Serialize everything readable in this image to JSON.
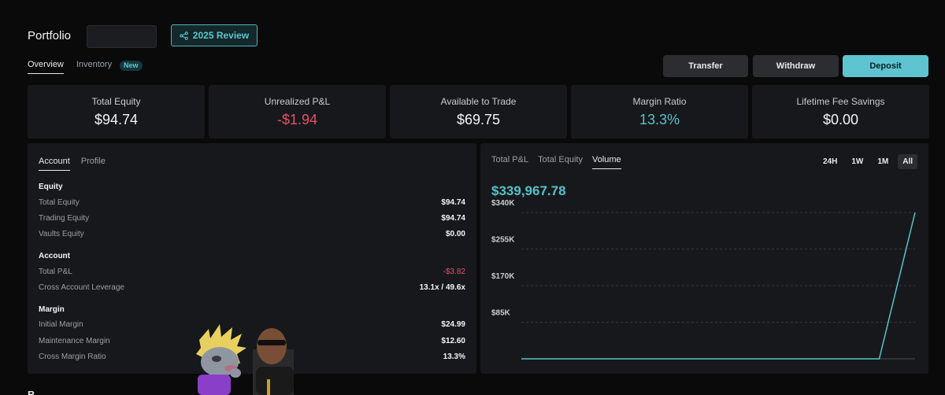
{
  "header": {
    "title": "Portfolio",
    "review_label": "2025 Review"
  },
  "tabs": {
    "overview": "Overview",
    "inventory": "Inventory",
    "new_badge": "New"
  },
  "actions": {
    "transfer": "Transfer",
    "withdraw": "Withdraw",
    "deposit": "Deposit"
  },
  "stats": {
    "total_equity": {
      "label": "Total Equity",
      "value": "$94.74"
    },
    "unrealized_pnl": {
      "label": "Unrealized P&L",
      "value": "-$1.94"
    },
    "available": {
      "label": "Available to Trade",
      "value": "$69.75"
    },
    "margin_ratio": {
      "label": "Margin Ratio",
      "value": "13.3%"
    },
    "fee_savings": {
      "label": "Lifetime Fee Savings",
      "value": "$0.00"
    }
  },
  "account_panel": {
    "tabs": {
      "account": "Account",
      "profile": "Profile"
    },
    "equity": {
      "title": "Equity",
      "total_equity": {
        "label": "Total Equity",
        "value": "$94.74"
      },
      "trading_equity": {
        "label": "Trading Equity",
        "value": "$94.74"
      },
      "vaults_equity": {
        "label": "Vaults Equity",
        "value": "$0.00"
      }
    },
    "account": {
      "title": "Account",
      "total_pnl": {
        "label": "Total P&L",
        "value": "-$3.82"
      },
      "leverage": {
        "label": "Cross Account Leverage",
        "value": "13.1x / 49.6x"
      }
    },
    "margin": {
      "title": "Margin",
      "initial": {
        "label": "Initial Margin",
        "value": "$24.99"
      },
      "maintenance": {
        "label": "Maintenance Margin",
        "value": "$12.60"
      },
      "cross_ratio": {
        "label": "Cross Margin Ratio",
        "value": "13.3%"
      }
    }
  },
  "chart_panel": {
    "tabs": {
      "pnl": "Total P&L",
      "equity": "Total Equity",
      "volume": "Volume"
    },
    "ranges": {
      "d": "24H",
      "w": "1W",
      "m": "1M",
      "all": "All"
    },
    "headline": "$339,967.78"
  },
  "footer": {
    "partial_text": "B..."
  },
  "chart_data": {
    "type": "line",
    "series": [
      {
        "values": [
          0,
          0,
          0,
          0,
          0,
          0,
          0,
          0,
          0,
          0,
          0,
          339967.78
        ]
      }
    ],
    "y_ticks": [
      "$340K",
      "$255K",
      "$170K",
      "$85K"
    ],
    "y_tick_values": [
      340000,
      255000,
      170000,
      85000
    ],
    "ylim": [
      0,
      340000
    ],
    "grid": true,
    "accent": "#56c2cc"
  },
  "colors": {
    "accent": "#56c2cc",
    "negative": "#e0536a",
    "background": "#0a0a0b",
    "card": "#17181b"
  }
}
